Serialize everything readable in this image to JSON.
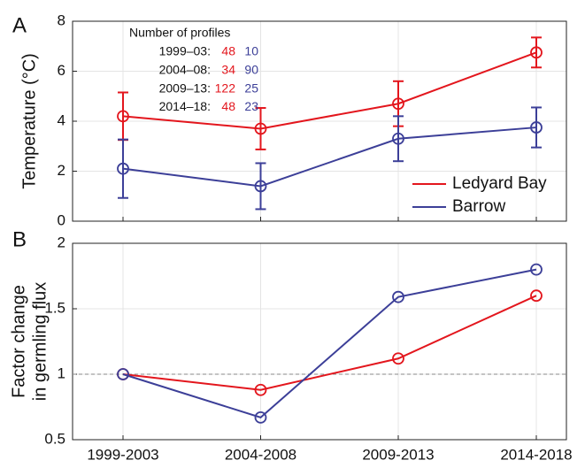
{
  "chart_data": [
    {
      "type": "line",
      "panel_label": "A",
      "ylabel": "Temperature (°C)",
      "ylim": [
        0,
        8
      ],
      "yticks": [
        0,
        2,
        4,
        6,
        8
      ],
      "grid": true,
      "legend": "lower right",
      "series": [
        {
          "name": "Ledyard Bay",
          "color": "#e3161d",
          "values": [
            4.2,
            3.7,
            4.7,
            6.75
          ],
          "errors": [
            0.95,
            0.83,
            0.9,
            0.6
          ]
        },
        {
          "name": "Barrow",
          "color": "#3c3f98",
          "values": [
            2.1,
            1.4,
            3.3,
            3.75
          ],
          "errors": [
            1.17,
            0.92,
            0.9,
            0.8
          ]
        }
      ],
      "profile_table": {
        "title": "Number of profiles",
        "rows": [
          {
            "period": "1999–03:",
            "counts": [
              48,
              10
            ]
          },
          {
            "period": "2004–08:",
            "counts": [
              34,
              90
            ]
          },
          {
            "period": "2009–13:",
            "counts": [
              122,
              25
            ]
          },
          {
            "period": "2014–18:",
            "counts": [
              48,
              23
            ]
          }
        ]
      }
    },
    {
      "type": "line",
      "panel_label": "B",
      "ylabel": [
        "Factor change",
        "in germling flux"
      ],
      "categories": [
        "1999-2003",
        "2004-2008",
        "2009-2013",
        "2014-2018"
      ],
      "ylim": [
        0.5,
        2
      ],
      "yticks": [
        0.5,
        1,
        1.5,
        2
      ],
      "grid": true,
      "hline": 1,
      "series": [
        {
          "name": "Ledyard Bay",
          "color": "#e3161d",
          "values": [
            1,
            0.88,
            1.12,
            1.6
          ]
        },
        {
          "name": "Barrow",
          "color": "#3c3f98",
          "values": [
            1,
            0.67,
            1.59,
            1.8
          ]
        }
      ]
    }
  ]
}
